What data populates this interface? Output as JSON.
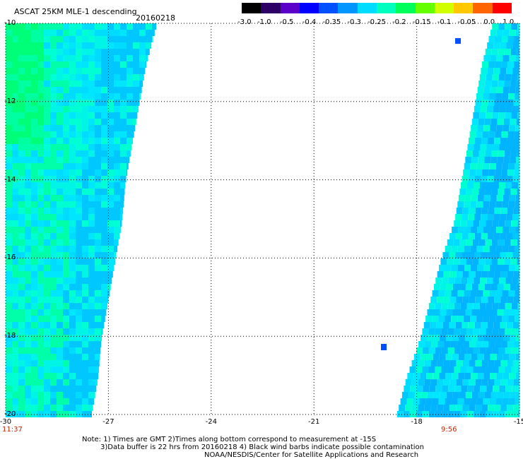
{
  "header": {
    "title": "ASCAT 25KM MLE-1 descending",
    "date": "20160218"
  },
  "colorbar": {
    "labels": [
      "-3.0",
      "-1.0",
      "-0.5",
      "-0.4",
      "-0.35",
      "-0.3",
      "-0.25",
      "-0.2",
      "-0.15",
      "-0.1",
      "-0.05",
      "0.0",
      "1.0"
    ],
    "colors": [
      "#000000",
      "#2d0066",
      "#5a00c8",
      "#0000ff",
      "#0050ff",
      "#0096ff",
      "#00dcff",
      "#00ffbe",
      "#00ff5a",
      "#64ff00",
      "#d2ff00",
      "#ffc800",
      "#ff6400",
      "#ff0000"
    ]
  },
  "time_labels": {
    "left": "11:37",
    "right": "9:56"
  },
  "notes": {
    "line1": "Note: 1) Times are GMT 2)Times along bottom correspond to measurement at -15S",
    "line2": "3)Data buffer is 22 hrs from 20160218 4) Black wind barbs indicate possible contamination",
    "line3": "NOAA/NESDIS/Center for Satellite Applications and Research"
  },
  "chart_data": {
    "type": "heatmap",
    "title": "ASCAT 25KM MLE-1 descending",
    "date": "20160218",
    "x_ticks": [
      "-30",
      "-27",
      "-24",
      "-21",
      "-18",
      "-15"
    ],
    "y_ticks": [
      "-10",
      "-12",
      "-14",
      "-16",
      "-18",
      "-20"
    ],
    "xlim": [
      -30,
      -15
    ],
    "ylim": [
      -20,
      -10
    ],
    "grid": true,
    "colorscale": [
      "-3.0",
      "-1.0",
      "-0.5",
      "-0.4",
      "-0.35",
      "-0.3",
      "-0.25",
      "-0.2",
      "-0.15",
      "-0.1",
      "-0.05",
      "0.0",
      "1.0"
    ],
    "swaths": [
      {
        "name": "",
        "time": "11:37",
        "edge": [
          [
            -10,
            -25.6
          ],
          [
            -11,
            -25.9
          ],
          [
            -12,
            -26.1
          ],
          [
            -13,
            -26.3
          ],
          [
            -14,
            -26.5
          ],
          [
            -15,
            -26.6
          ],
          [
            -16,
            -26.8
          ],
          [
            -17,
            -27.0
          ],
          [
            -18,
            -27.2
          ],
          [
            -19,
            -27.3
          ],
          [
            -20,
            -27.5
          ]
        ],
        "typical_value": "-0.3"
      },
      {
        "name": "",
        "time": "9:56",
        "edge": [
          [
            -10,
            -15.8
          ],
          [
            -11,
            -16.1
          ],
          [
            -12,
            -16.3
          ],
          [
            -13,
            -16.5
          ],
          [
            -14,
            -16.7
          ],
          [
            -15,
            -16.9
          ],
          [
            -16,
            -17.3
          ],
          [
            -17,
            -17.6
          ],
          [
            -18,
            -17.9
          ],
          [
            -19,
            -18.3
          ],
          [
            -20,
            -18.6
          ]
        ],
        "typical_value": "-0.3"
      }
    ]
  }
}
